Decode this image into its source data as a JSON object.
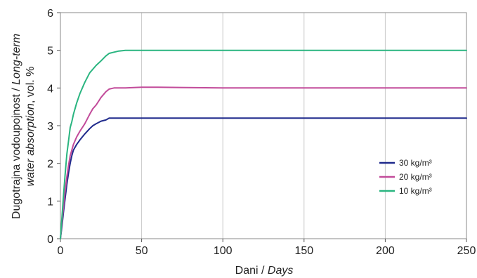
{
  "chart_data": {
    "type": "line",
    "title": "",
    "xlabel": {
      "main": "Dani",
      "sep": " / ",
      "italic": "Days"
    },
    "ylabel": {
      "line1_main": "Dugotrajna vodoupojnost / ",
      "line1_italic": "Long-term",
      "line2_italic": "water absorption",
      "line2_main": ", vol. %"
    },
    "xlim": [
      0,
      250
    ],
    "ylim": [
      0,
      6
    ],
    "xticks": [
      "0",
      "50",
      "100",
      "150",
      "200",
      "250"
    ],
    "yticks": [
      "0",
      "1",
      "2",
      "3",
      "4",
      "5",
      "6"
    ],
    "grid": "vertical",
    "legend_position": "right-center",
    "series": [
      {
        "name": "30 kg/m³",
        "color": "#1f2a8c",
        "x": [
          0,
          1,
          2,
          3,
          4,
          5,
          6,
          7,
          8,
          10,
          12,
          15,
          18,
          20,
          22,
          25,
          28,
          30,
          40,
          50,
          100,
          150,
          200,
          250
        ],
        "y": [
          0,
          0.35,
          0.75,
          1.1,
          1.45,
          1.75,
          2.0,
          2.2,
          2.35,
          2.5,
          2.62,
          2.78,
          2.92,
          3.0,
          3.05,
          3.12,
          3.15,
          3.2,
          3.2,
          3.2,
          3.2,
          3.2,
          3.2,
          3.2
        ]
      },
      {
        "name": "20 kg/m³",
        "color": "#c24b9a",
        "x": [
          0,
          1,
          2,
          3,
          4,
          5,
          6,
          7,
          8,
          10,
          12,
          15,
          18,
          20,
          22,
          25,
          28,
          30,
          33,
          40,
          50,
          60,
          100,
          150,
          200,
          250
        ],
        "y": [
          0,
          0.45,
          0.9,
          1.3,
          1.65,
          1.95,
          2.2,
          2.35,
          2.5,
          2.7,
          2.85,
          3.05,
          3.3,
          3.45,
          3.55,
          3.75,
          3.9,
          3.97,
          4.0,
          4.0,
          4.02,
          4.02,
          4.0,
          4.0,
          4.0,
          4.0
        ]
      },
      {
        "name": "10 kg/m³",
        "color": "#2ab580",
        "x": [
          0,
          1,
          2,
          3,
          4,
          5,
          6,
          7,
          8,
          10,
          12,
          15,
          18,
          20,
          22,
          25,
          28,
          30,
          33,
          36,
          40,
          50,
          100,
          150,
          200,
          250
        ],
        "y": [
          0,
          0.6,
          1.2,
          1.75,
          2.25,
          2.6,
          2.95,
          3.1,
          3.3,
          3.6,
          3.85,
          4.15,
          4.4,
          4.5,
          4.6,
          4.72,
          4.85,
          4.92,
          4.95,
          4.98,
          5.0,
          5.0,
          5.0,
          5.0,
          5.0,
          5.0
        ]
      }
    ]
  }
}
